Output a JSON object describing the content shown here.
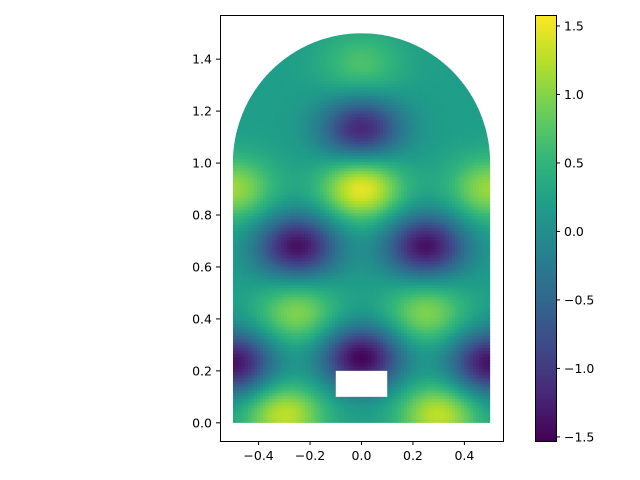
{
  "chart_data": {
    "type": "heatmap",
    "title": "",
    "xlabel": "",
    "ylabel": "",
    "xlim": [
      -0.55,
      0.55
    ],
    "ylim": [
      -0.07,
      1.57
    ],
    "x_ticks": [
      -0.4,
      -0.2,
      0.0,
      0.2,
      0.4
    ],
    "y_ticks": [
      0.0,
      0.2,
      0.4,
      0.6,
      0.8,
      1.0,
      1.2,
      1.4
    ],
    "x_tick_labels": [
      "−0.4",
      "−0.2",
      "0.0",
      "0.2",
      "0.4"
    ],
    "y_tick_labels": [
      "0.0",
      "0.2",
      "0.4",
      "0.6",
      "0.8",
      "1.0",
      "1.2",
      "1.4"
    ],
    "domain": {
      "shape": "rectangle topped by semicircle",
      "rect_x": [
        -0.5,
        0.5
      ],
      "rect_y": [
        0.0,
        1.0
      ],
      "arch_center": [
        0.0,
        1.0
      ],
      "arch_radius": 0.5,
      "hole_x": [
        -0.1,
        0.1
      ],
      "hole_y": [
        0.1,
        0.2
      ]
    },
    "field_features": [
      {
        "x": 0.0,
        "y": 0.9,
        "value": 1.5
      },
      {
        "x": -0.25,
        "y": 0.68,
        "value": -1.4
      },
      {
        "x": 0.25,
        "y": 0.68,
        "value": -1.4
      },
      {
        "x": 0.0,
        "y": 1.13,
        "value": -1.2
      },
      {
        "x": -0.5,
        "y": 0.9,
        "value": 1.1
      },
      {
        "x": 0.5,
        "y": 0.9,
        "value": 1.1
      },
      {
        "x": -0.5,
        "y": 0.23,
        "value": -1.4
      },
      {
        "x": 0.5,
        "y": 0.23,
        "value": -1.4
      },
      {
        "x": 0.0,
        "y": 0.25,
        "value": -1.5
      },
      {
        "x": -0.3,
        "y": 0.03,
        "value": 1.3
      },
      {
        "x": 0.3,
        "y": 0.03,
        "value": 1.3
      },
      {
        "x": -0.25,
        "y": 0.42,
        "value": 1.0
      },
      {
        "x": 0.25,
        "y": 0.42,
        "value": 1.0
      },
      {
        "x": 0.0,
        "y": 1.38,
        "value": 0.7
      }
    ],
    "colorbar": {
      "colormap": "viridis",
      "range": [
        -1.53,
        1.58
      ],
      "ticks": [
        -1.5,
        -1.0,
        -0.5,
        0.0,
        0.5,
        1.0,
        1.5
      ],
      "tick_labels": [
        "−1.5",
        "−1.0",
        "−0.5",
        "0.0",
        "0.5",
        "1.0",
        "1.5"
      ]
    }
  }
}
